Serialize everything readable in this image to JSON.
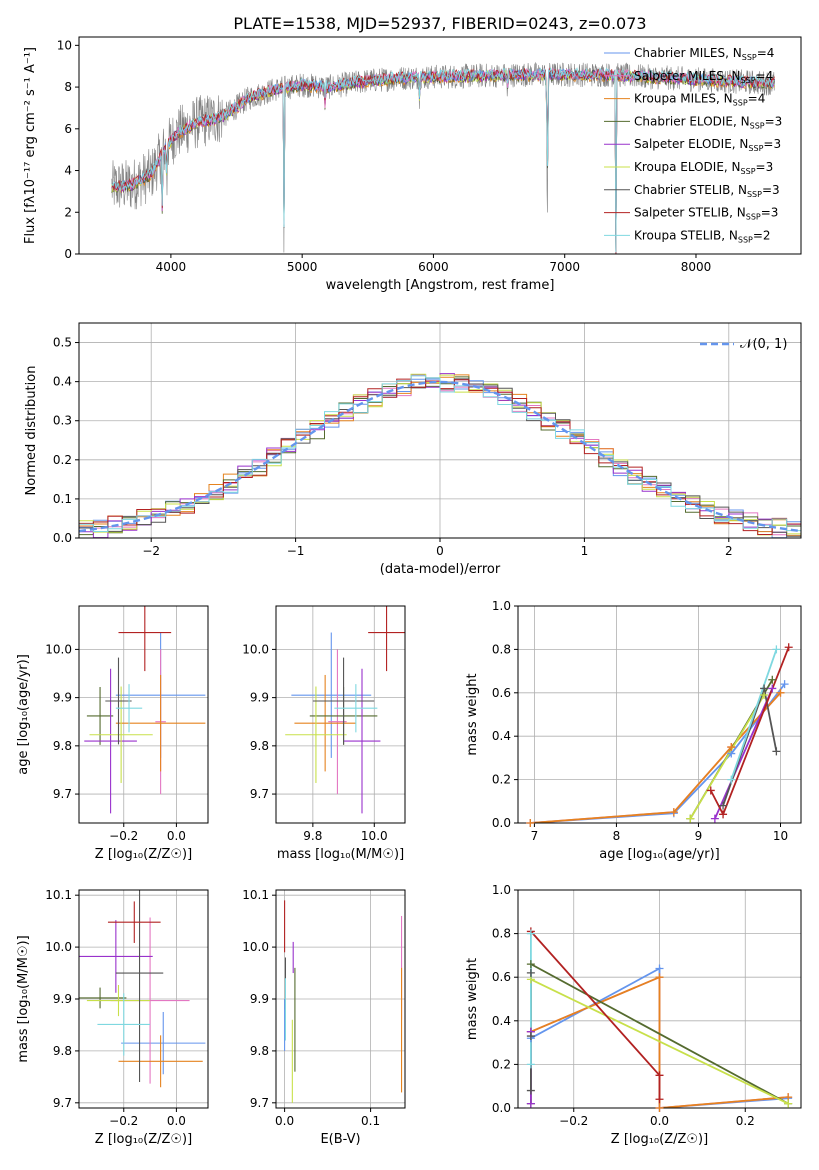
{
  "figure": {
    "title": "PLATE=1538, MJD=52937, FIBERID=0243, z=0.073"
  },
  "colors": {
    "Chabrier MILES": "#6495ed",
    "Salpeter MILES": "#e377c2",
    "Kroupa MILES": "#e5831f",
    "Chabrier ELODIE": "#556b2f",
    "Salpeter ELODIE": "#9932cc",
    "Kroupa ELODIE": "#c8e04a",
    "Chabrier STELIB": "#555555",
    "Salpeter STELIB": "#b22222",
    "Kroupa STELIB": "#7fd8e0",
    "data": "#808080",
    "gaussian": "#6495ed",
    "grid": "#b0b0b0"
  },
  "chart_data": [
    {
      "id": "spectrum",
      "type": "line",
      "xlabel": "wavelength [Angstrom, rest frame]",
      "ylabel": "Flux [fλ10⁻¹⁷ erg cm⁻² s⁻¹ A⁻¹]",
      "xlim": [
        3300,
        8800
      ],
      "ylim": [
        0,
        10.4
      ],
      "xticks": [
        4000,
        5000,
        6000,
        7000,
        8000
      ],
      "yticks": [
        0,
        2,
        4,
        6,
        8,
        10
      ],
      "grid": false,
      "legend": "upper-right",
      "legend_entries": [
        "Chabrier MILES, N_SSP=4",
        "Salpeter MILES, N_SSP=4",
        "Kroupa MILES, N_SSP=4",
        "Chabrier ELODIE, N_SSP=3",
        "Salpeter ELODIE, N_SSP=3",
        "Kroupa ELODIE, N_SSP=3",
        "Chabrier STELIB, N_SSP=3",
        "Salpeter STELIB, N_SSP=3",
        "Kroupa STELIB, N_SSP=2"
      ],
      "continuum": {
        "x": [
          3550,
          3700,
          3850,
          3950,
          4050,
          4200,
          4400,
          4600,
          4800,
          5000,
          5200,
          5500,
          5800,
          6100,
          6400,
          6700,
          7000,
          7300,
          7600,
          7900,
          8200,
          8500,
          8600
        ],
        "y": [
          3.2,
          3.3,
          3.8,
          5.0,
          5.8,
          6.3,
          6.6,
          7.5,
          7.9,
          8.1,
          8.0,
          8.3,
          8.45,
          8.5,
          8.55,
          8.6,
          8.6,
          8.6,
          8.5,
          8.4,
          8.3,
          8.2,
          8.2
        ]
      },
      "absorption_features": [
        {
          "x": 3934,
          "y": 2.2
        },
        {
          "x": 3969,
          "y": 2.8
        },
        {
          "x": 4861,
          "y": 0.0
        },
        {
          "x": 5175,
          "y": 7.0
        },
        {
          "x": 5893,
          "y": 7.3
        },
        {
          "x": 6563,
          "y": 7.6
        },
        {
          "x": 6867,
          "y": 0.0
        },
        {
          "x": 7390,
          "y": 0.0
        }
      ]
    },
    {
      "id": "residuals",
      "type": "bar",
      "xlabel": "(data-model)/error",
      "ylabel": "Normed distribution",
      "xlim": [
        -2.5,
        2.5
      ],
      "ylim": [
        0,
        0.55
      ],
      "xticks": [
        -2,
        -1,
        0,
        1,
        2
      ],
      "yticks": [
        0.0,
        0.1,
        0.2,
        0.3,
        0.4,
        0.5
      ],
      "grid": true,
      "legend": "upper-right",
      "gaussian_label": "𝒩(0, 1)",
      "bin_width": 0.1,
      "bin_start": -2.5
    },
    {
      "id": "age_vs_Z",
      "type": "scatter",
      "xlabel": "Z [log₁₀(Z/Z☉)]",
      "ylabel": "age  [log₁₀(age/yr)]",
      "xlim": [
        -0.37,
        0.12
      ],
      "ylim": [
        9.64,
        10.09
      ],
      "xticks": [
        -0.2,
        0.0
      ],
      "yticks": [
        9.7,
        9.8,
        9.9,
        10.0
      ],
      "grid": true,
      "points": [
        {
          "series": "Chabrier MILES",
          "x": -0.06,
          "xerr": 0.17,
          "y": 9.905,
          "yerr": 0.13
        },
        {
          "series": "Salpeter MILES",
          "x": -0.06,
          "xerr": 0.02,
          "y": 9.85,
          "yerr": 0.15
        },
        {
          "series": "Kroupa MILES",
          "x": -0.06,
          "xerr": 0.17,
          "y": 9.847,
          "yerr": 0.1
        },
        {
          "series": "Chabrier ELODIE",
          "x": -0.29,
          "xerr": 0.05,
          "y": 9.862,
          "yerr": 0.06
        },
        {
          "series": "Salpeter ELODIE",
          "x": -0.25,
          "xerr": 0.1,
          "y": 9.81,
          "yerr": 0.15
        },
        {
          "series": "Kroupa ELODIE",
          "x": -0.21,
          "xerr": 0.12,
          "y": 9.823,
          "yerr": 0.1
        },
        {
          "series": "Chabrier STELIB",
          "x": -0.22,
          "xerr": 0.05,
          "y": 9.893,
          "yerr": 0.09
        },
        {
          "series": "Salpeter STELIB",
          "x": -0.12,
          "xerr": 0.1,
          "y": 10.035,
          "yerr": 0.08
        },
        {
          "series": "Kroupa STELIB",
          "x": -0.18,
          "xerr": 0.05,
          "y": 9.878,
          "yerr": 0.05
        }
      ]
    },
    {
      "id": "age_vs_mass",
      "type": "scatter",
      "xlabel": "mass [log₁₀(M/M☉)]",
      "ylabel": "",
      "xlim": [
        9.68,
        10.1
      ],
      "ylim": [
        9.64,
        10.09
      ],
      "xticks": [
        9.8,
        10.0
      ],
      "yticks": [
        9.7,
        9.8,
        9.9,
        10.0
      ],
      "grid": true,
      "points": [
        {
          "series": "Chabrier MILES",
          "x": 9.86,
          "xerr": 0.13,
          "y": 9.905,
          "yerr": 0.13
        },
        {
          "series": "Salpeter MILES",
          "x": 9.88,
          "xerr": 0.03,
          "y": 9.85,
          "yerr": 0.15
        },
        {
          "series": "Kroupa MILES",
          "x": 9.84,
          "xerr": 0.1,
          "y": 9.847,
          "yerr": 0.1
        },
        {
          "series": "Chabrier ELODIE",
          "x": 9.9,
          "xerr": 0.11,
          "y": 9.862,
          "yerr": 0.06
        },
        {
          "series": "Salpeter ELODIE",
          "x": 9.96,
          "xerr": 0.06,
          "y": 9.81,
          "yerr": 0.15
        },
        {
          "series": "Kroupa ELODIE",
          "x": 9.81,
          "xerr": 0.1,
          "y": 9.823,
          "yerr": 0.1
        },
        {
          "series": "Chabrier STELIB",
          "x": 9.9,
          "xerr": 0.1,
          "y": 9.893,
          "yerr": 0.09
        },
        {
          "series": "Salpeter STELIB",
          "x": 10.04,
          "xerr": 0.06,
          "y": 10.035,
          "yerr": 0.08
        },
        {
          "series": "Kroupa STELIB",
          "x": 9.94,
          "xerr": 0.07,
          "y": 9.878,
          "yerr": 0.05
        }
      ]
    },
    {
      "id": "mass_weight_vs_age",
      "type": "line",
      "xlabel": "age  [log₁₀(age/yr)]",
      "ylabel": "mass weight",
      "xlim": [
        6.8,
        10.25
      ],
      "ylim": [
        0,
        1.0
      ],
      "xticks": [
        7,
        8,
        9,
        10
      ],
      "yticks": [
        0.0,
        0.2,
        0.4,
        0.6,
        0.8,
        1.0
      ],
      "grid": true,
      "series": [
        {
          "name": "Chabrier MILES",
          "x": [
            6.95,
            8.7,
            9.4,
            10.05
          ],
          "y": [
            0.0,
            0.045,
            0.32,
            0.64
          ]
        },
        {
          "name": "Salpeter MILES",
          "x": [
            6.95,
            8.7,
            9.4,
            10.0
          ],
          "y": [
            0.0,
            0.05,
            0.35,
            0.6
          ]
        },
        {
          "name": "Kroupa MILES",
          "x": [
            6.95,
            8.7,
            9.4,
            10.0
          ],
          "y": [
            0.0,
            0.05,
            0.35,
            0.6
          ]
        },
        {
          "name": "Chabrier ELODIE",
          "x": [
            8.9,
            9.9
          ],
          "y": [
            0.02,
            0.66
          ]
        },
        {
          "name": "Salpeter ELODIE",
          "x": [
            9.2,
            9.9
          ],
          "y": [
            0.02,
            0.62
          ]
        },
        {
          "name": "Kroupa ELODIE",
          "x": [
            8.9,
            9.8
          ],
          "y": [
            0.02,
            0.59
          ]
        },
        {
          "name": "Chabrier STELIB",
          "x": [
            9.3,
            9.8,
            9.95
          ],
          "y": [
            0.08,
            0.62,
            0.33
          ]
        },
        {
          "name": "Salpeter STELIB",
          "x": [
            9.15,
            9.3,
            10.1
          ],
          "y": [
            0.15,
            0.04,
            0.81
          ]
        },
        {
          "name": "Kroupa STELIB",
          "x": [
            9.4,
            9.95
          ],
          "y": [
            0.2,
            0.8
          ]
        }
      ]
    },
    {
      "id": "mass_vs_Z",
      "type": "scatter",
      "xlabel": "Z [log₁₀(Z/Z☉)]",
      "ylabel": "mass [log₁₀(M/M☉)]",
      "xlim": [
        -0.37,
        0.12
      ],
      "ylim": [
        9.69,
        10.11
      ],
      "xticks": [
        -0.2,
        0.0
      ],
      "yticks": [
        9.7,
        9.8,
        9.9,
        10.0,
        10.1
      ],
      "grid": true,
      "points": [
        {
          "series": "Chabrier MILES",
          "x": -0.05,
          "xerr": 0.16,
          "y": 9.815,
          "yerr": 0.06
        },
        {
          "series": "Salpeter MILES",
          "x": -0.1,
          "xerr": 0.15,
          "y": 9.897,
          "yerr": 0.16
        },
        {
          "series": "Kroupa MILES",
          "x": -0.06,
          "xerr": 0.16,
          "y": 9.78,
          "yerr": 0.05
        },
        {
          "series": "Chabrier ELODIE",
          "x": -0.29,
          "xerr": 0.1,
          "y": 9.902,
          "yerr": 0.02
        },
        {
          "series": "Salpeter ELODIE",
          "x": -0.23,
          "xerr": 0.14,
          "y": 9.982,
          "yerr": 0.07
        },
        {
          "series": "Kroupa ELODIE",
          "x": -0.22,
          "xerr": 0.12,
          "y": 9.897,
          "yerr": 0.03
        },
        {
          "series": "Chabrier STELIB",
          "x": -0.14,
          "xerr": 0.09,
          "y": 9.95,
          "yerr": 0.21
        },
        {
          "series": "Salpeter STELIB",
          "x": -0.16,
          "xerr": 0.1,
          "y": 10.048,
          "yerr": 0.04
        },
        {
          "series": "Kroupa STELIB",
          "x": -0.2,
          "xerr": 0.1,
          "y": 9.851,
          "yerr": 0.06
        }
      ]
    },
    {
      "id": "mass_vs_ebv",
      "type": "scatter",
      "xlabel": "E(B-V)",
      "ylabel": "",
      "xlim": [
        -0.01,
        0.14
      ],
      "ylim": [
        9.69,
        10.11
      ],
      "xticks": [
        0.0,
        0.1
      ],
      "yticks": [
        9.7,
        9.8,
        9.9,
        10.0,
        10.1
      ],
      "grid": true,
      "points": [
        {
          "series": "Chabrier MILES",
          "x": 0.0,
          "y": 9.85,
          "yerr": 0.05
        },
        {
          "series": "Salpeter MILES",
          "x": 0.136,
          "y": 9.96,
          "yerr": 0.1
        },
        {
          "series": "Kroupa MILES",
          "x": 0.136,
          "y": 9.84,
          "yerr": 0.12
        },
        {
          "series": "Chabrier ELODIE",
          "x": 0.012,
          "y": 9.86,
          "yerr": 0.1
        },
        {
          "series": "Salpeter ELODIE",
          "x": 0.01,
          "y": 9.98,
          "yerr": 0.03
        },
        {
          "series": "Kroupa ELODIE",
          "x": 0.009,
          "y": 9.78,
          "yerr": 0.08
        },
        {
          "series": "Chabrier STELIB",
          "x": 0.001,
          "y": 9.93,
          "yerr": 0.05
        },
        {
          "series": "Salpeter STELIB",
          "x": 0.0,
          "y": 10.04,
          "yerr": 0.05
        },
        {
          "series": "Kroupa STELIB",
          "x": 0.001,
          "y": 9.88,
          "yerr": 0.06
        }
      ]
    },
    {
      "id": "mass_weight_vs_Z",
      "type": "line",
      "xlabel": "Z [log₁₀(Z/Z☉)]",
      "ylabel": "mass weight",
      "xlim": [
        -0.33,
        0.33
      ],
      "ylim": [
        0,
        1.0
      ],
      "xticks": [
        -0.2,
        0.0,
        0.2
      ],
      "yticks": [
        0.0,
        0.2,
        0.4,
        0.6,
        0.8,
        1.0
      ],
      "grid": true,
      "series": [
        {
          "name": "Chabrier MILES",
          "x": [
            -0.3,
            0.0,
            0.0,
            0.3
          ],
          "y": [
            0.32,
            0.64,
            0.0,
            0.045
          ]
        },
        {
          "name": "Salpeter MILES",
          "x": [
            -0.3,
            0.0,
            0.0,
            0.3
          ],
          "y": [
            0.35,
            0.6,
            0.0,
            0.05
          ]
        },
        {
          "name": "Kroupa MILES",
          "x": [
            -0.3,
            0.0,
            0.0,
            0.3
          ],
          "y": [
            0.35,
            0.6,
            0.0,
            0.05
          ]
        },
        {
          "name": "Chabrier ELODIE",
          "x": [
            -0.3,
            -0.3,
            0.3
          ],
          "y": [
            0.02,
            0.66,
            0.02
          ]
        },
        {
          "name": "Salpeter ELODIE",
          "x": [
            -0.3,
            -0.3
          ],
          "y": [
            0.02,
            0.35
          ]
        },
        {
          "name": "Kroupa ELODIE",
          "x": [
            -0.3,
            0.3
          ],
          "y": [
            0.59,
            0.02
          ]
        },
        {
          "name": "Chabrier STELIB",
          "x": [
            -0.3,
            -0.3,
            -0.3
          ],
          "y": [
            0.08,
            0.33,
            0.62
          ]
        },
        {
          "name": "Salpeter STELIB",
          "x": [
            -0.3,
            0.0,
            0.0
          ],
          "y": [
            0.81,
            0.15,
            0.04
          ]
        },
        {
          "name": "Kroupa STELIB",
          "x": [
            -0.3,
            -0.3
          ],
          "y": [
            0.2,
            0.8
          ]
        }
      ]
    }
  ]
}
